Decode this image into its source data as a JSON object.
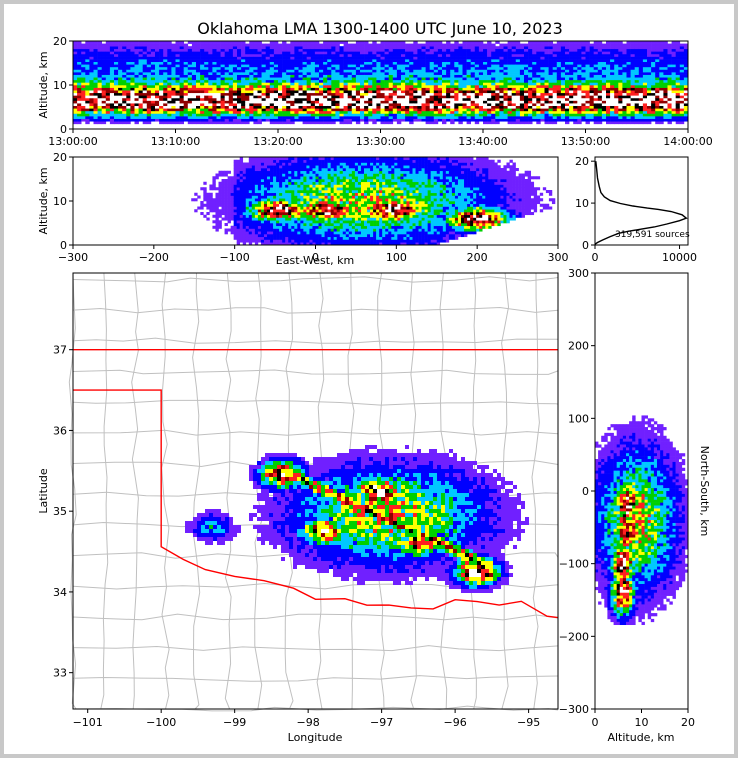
{
  "title": "Oklahoma LMA 1300-1400 UTC June 10, 2023",
  "chart_data": [
    {
      "panel": "time-height",
      "type": "heatmap",
      "ylabel": "Altitude, km",
      "xlim": [
        "13:00:00",
        "14:00:00"
      ],
      "ylim": [
        0,
        20
      ],
      "x_ticks": [
        "13:00:00",
        "13:10:00",
        "13:20:00",
        "13:30:00",
        "13:40:00",
        "13:50:00",
        "14:00:00"
      ],
      "y_ticks": [
        "0",
        "10",
        "20"
      ],
      "peak_altitude_band_km": [
        4,
        9
      ],
      "colormap": [
        "#ffffff",
        "#7020ff",
        "#0000ff",
        "#00c8ff",
        "#00d000",
        "#ffff00",
        "#ff2020",
        "#900000",
        "#000000",
        "#ffffff"
      ]
    },
    {
      "panel": "east-west-height",
      "type": "heatmap",
      "xlabel": "East-West, km",
      "ylabel": "Altitude, km",
      "xlim": [
        -300,
        300
      ],
      "ylim": [
        0,
        20
      ],
      "x_ticks": [
        "−300",
        "−200",
        "−100",
        "0",
        "100",
        "200",
        "300"
      ],
      "y_ticks": [
        "0",
        "10",
        "20"
      ],
      "cores": [
        {
          "x": -45,
          "z": 8,
          "level": 0.95
        },
        {
          "x": 15,
          "z": 8,
          "level": 0.9
        },
        {
          "x": 95,
          "z": 8,
          "level": 1.0
        },
        {
          "x": 200,
          "z": 6,
          "level": 1.0
        }
      ]
    },
    {
      "panel": "altitude-histogram",
      "type": "line",
      "xlim": [
        0,
        11000
      ],
      "ylim": [
        0,
        21
      ],
      "x_ticks": [
        "0",
        "10000"
      ],
      "y_ticks": [
        "0",
        "10",
        "20"
      ],
      "annotation": "319,591 sources",
      "x": [
        0,
        300,
        900,
        1800,
        2800,
        4000,
        5500,
        7000,
        8500,
        10000,
        10800,
        10300,
        9000,
        7500,
        6200,
        4500,
        3000,
        1800,
        1100,
        700,
        500,
        300,
        200,
        100
      ],
      "y": [
        0.2,
        0.6,
        1.2,
        2.0,
        2.8,
        3.3,
        3.8,
        4.3,
        5.0,
        5.8,
        6.4,
        7.2,
        8.0,
        8.5,
        8.8,
        9.3,
        9.9,
        10.6,
        11.5,
        12.5,
        14.0,
        16.0,
        18.0,
        20.0
      ]
    },
    {
      "panel": "plan-view",
      "type": "heatmap",
      "xlabel": "Longitude",
      "ylabel": "Latitude",
      "xlim": [
        -101.2,
        -94.6
      ],
      "ylim": [
        32.55,
        37.95
      ],
      "x_ticks": [
        "−101",
        "−100",
        "−99",
        "−98",
        "−97",
        "−96",
        "−95"
      ],
      "y_ticks": [
        "33",
        "34",
        "35",
        "36",
        "37"
      ],
      "state_border_color": "#ff0000",
      "county_border_color": "#c0c0c0",
      "cores": [
        {
          "lon": -98.35,
          "lat": 35.45,
          "level": 0.9
        },
        {
          "lon": -97.05,
          "lat": 35.25,
          "level": 1.0
        },
        {
          "lon": -97.8,
          "lat": 34.75,
          "level": 0.9
        },
        {
          "lon": -96.5,
          "lat": 34.6,
          "level": 0.85
        },
        {
          "lon": -95.7,
          "lat": 34.25,
          "level": 1.0
        },
        {
          "lon": -99.3,
          "lat": 34.8,
          "level": 0.3
        }
      ]
    },
    {
      "panel": "north-south-height",
      "type": "heatmap",
      "xlabel": "Altitude, km",
      "ylabel": "North-South, km",
      "xlim": [
        0,
        20
      ],
      "ylim": [
        -300,
        300
      ],
      "x_ticks": [
        "0",
        "10",
        "20"
      ],
      "y_ticks": [
        "−300",
        "−200",
        "−100",
        "0",
        "100",
        "200",
        "300"
      ]
    }
  ]
}
